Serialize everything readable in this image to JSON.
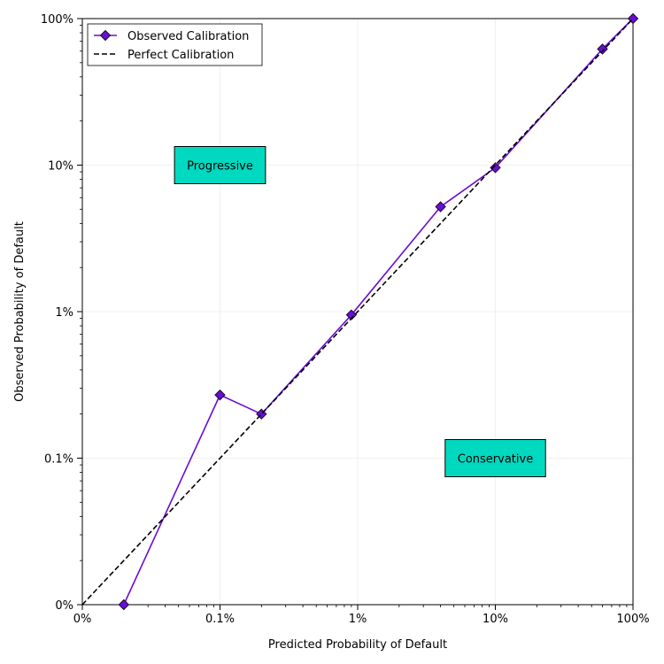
{
  "chart_data": {
    "type": "line",
    "xlabel": "Predicted Probability of Default",
    "ylabel": "Observed Probability of Default",
    "x_scale": "log",
    "y_scale": "log",
    "xlim": [
      0.0001,
      1
    ],
    "ylim": [
      0.0001,
      1
    ],
    "x_ticks": [
      0.0001,
      0.001,
      0.01,
      0.1,
      1
    ],
    "x_tick_labels": [
      "0%",
      "0.1%",
      "1%",
      "10%",
      "100%"
    ],
    "y_ticks": [
      0.0001,
      0.001,
      0.01,
      0.1,
      1
    ],
    "y_tick_labels": [
      "0%",
      "0.1%",
      "1%",
      "10%",
      "100%"
    ],
    "grid": true,
    "legend_position": "top-left",
    "legend": [
      "Observed Calibration",
      "Perfect Calibration"
    ],
    "series": [
      {
        "name": "Observed Calibration",
        "style": "solid",
        "marker": "diamond",
        "color": "#6a0dd6",
        "x": [
          0.0002,
          0.001,
          0.002,
          0.009,
          0.04,
          0.1,
          0.6,
          1.0
        ],
        "y": [
          0.0001,
          0.0027,
          0.002,
          0.0095,
          0.052,
          0.096,
          0.62,
          1.0
        ]
      },
      {
        "name": "Perfect Calibration",
        "style": "dashed",
        "marker": "none",
        "color": "#000000",
        "x": [
          0.0001,
          1
        ],
        "y": [
          0.0001,
          1
        ]
      }
    ],
    "annotations": [
      {
        "text": "Progressive",
        "x": 0.001,
        "y": 0.1
      },
      {
        "text": "Conservative",
        "x": 0.1,
        "y": 0.001
      }
    ],
    "annotation_box_color": "#00d9c0"
  }
}
